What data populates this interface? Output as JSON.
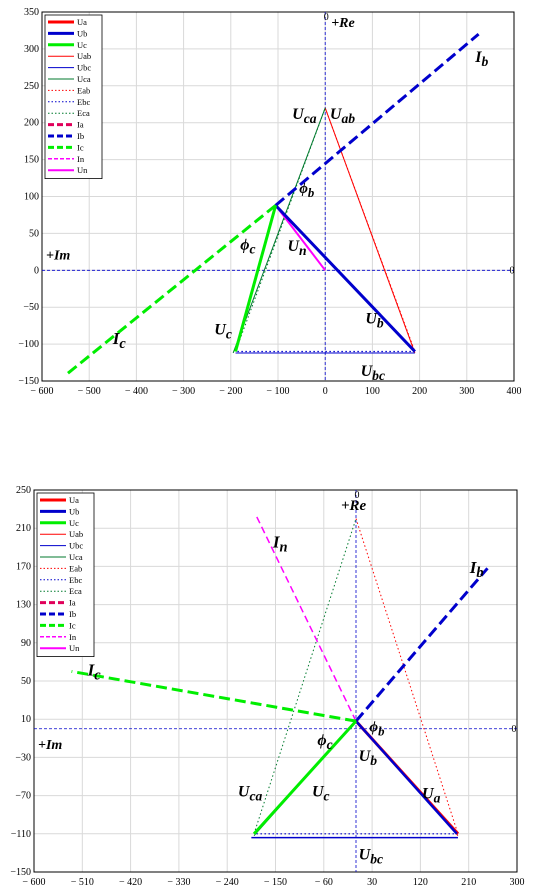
{
  "colors": {
    "red": "#ff0000",
    "blue": "#0000cc",
    "green": "#00ee00",
    "darkgreen": "#007a2e",
    "magenta": "#ff00ff",
    "crimson": "#e0005a",
    "grid": "#d9d9d9",
    "axis": "#0000cc"
  },
  "chart_data": [
    {
      "type": "line",
      "title": "",
      "xlim": [
        -600,
        400
      ],
      "ylim": [
        -150,
        350
      ],
      "xticks": [
        -600,
        -500,
        -400,
        -300,
        -200,
        -100,
        0,
        100,
        200,
        300,
        400
      ],
      "yticks": [
        350,
        300,
        250,
        200,
        150,
        100,
        50,
        0,
        -50,
        -100,
        -150
      ],
      "xtick_labels": [
        "− 600",
        "− 500",
        "− 400",
        "− 300",
        "− 200",
        "− 100",
        "0",
        "100",
        "200",
        "300",
        "400"
      ],
      "ytick_labels": [
        "350",
        "300",
        "250",
        "200",
        "150",
        "100",
        "50",
        "0",
        "−50",
        "−100",
        "−150"
      ],
      "axis_zero_label": "0",
      "axis_labels": {
        "real": "+Re",
        "imag": "+Im"
      },
      "legend": [
        {
          "label": "Ua",
          "color": "#ff0000",
          "width": 3,
          "dash": "solid"
        },
        {
          "label": "Ub",
          "color": "#0000cc",
          "width": 3,
          "dash": "solid"
        },
        {
          "label": "Uc",
          "color": "#00ee00",
          "width": 3,
          "dash": "solid"
        },
        {
          "label": "Uab",
          "color": "#ff0000",
          "width": 1,
          "dash": "solid"
        },
        {
          "label": "Ubc",
          "color": "#0000cc",
          "width": 1,
          "dash": "solid"
        },
        {
          "label": "Uca",
          "color": "#007a2e",
          "width": 1,
          "dash": "solid"
        },
        {
          "label": "Eab",
          "color": "#ff0000",
          "width": 1,
          "dash": "dot"
        },
        {
          "label": "Ebc",
          "color": "#0000cc",
          "width": 1,
          "dash": "dot"
        },
        {
          "label": "Eca",
          "color": "#007a2e",
          "width": 1,
          "dash": "dot"
        },
        {
          "label": "Ia",
          "color": "#e0005a",
          "width": 3,
          "dash": "dash"
        },
        {
          "label": "Ib",
          "color": "#0000cc",
          "width": 3,
          "dash": "dash"
        },
        {
          "label": "Ic",
          "color": "#00ee00",
          "width": 3,
          "dash": "dash"
        },
        {
          "label": "In",
          "color": "#ff00ff",
          "width": 1.5,
          "dash": "dash"
        },
        {
          "label": "Un",
          "color": "#ff00ff",
          "width": 2,
          "dash": "solid"
        }
      ],
      "series": [
        {
          "name": "Eab",
          "color": "#ff0000",
          "width": 1,
          "dash": "dot",
          "points": [
            [
              0,
              220
            ],
            [
              190,
              -110
            ]
          ]
        },
        {
          "name": "Ebc",
          "color": "#0000cc",
          "width": 1.2,
          "dash": "dot",
          "points": [
            [
              190,
              -110
            ],
            [
              -190,
              -110
            ]
          ]
        },
        {
          "name": "Eca",
          "color": "#007a2e",
          "width": 1,
          "dash": "dot",
          "points": [
            [
              -190,
              -110
            ],
            [
              0,
              220
            ]
          ]
        },
        {
          "name": "Uab",
          "color": "#ff0000",
          "width": 1,
          "dash": "solid",
          "points": [
            [
              0,
              220
            ],
            [
              190,
              -112
            ]
          ]
        },
        {
          "name": "Ubc",
          "color": "#0000cc",
          "width": 1,
          "dash": "solid",
          "points": [
            [
              190,
              -112
            ],
            [
              -190,
              -112
            ]
          ]
        },
        {
          "name": "Uca",
          "color": "#007a2e",
          "width": 1,
          "dash": "solid",
          "points": [
            [
              -195,
              -112
            ],
            [
              0,
              220
            ]
          ]
        },
        {
          "name": "Ib",
          "color": "#0000cc",
          "width": 3,
          "dash": "dash",
          "points": [
            [
              -105,
              88
            ],
            [
              325,
              320
            ]
          ]
        },
        {
          "name": "Ic",
          "color": "#00ee00",
          "width": 3,
          "dash": "dash",
          "points": [
            [
              -105,
              88
            ],
            [
              -550,
              -142
            ]
          ]
        },
        {
          "name": "Un",
          "color": "#ff00ff",
          "width": 2,
          "dash": "solid",
          "points": [
            [
              -105,
              88
            ],
            [
              0,
              0
            ]
          ]
        },
        {
          "name": "Ub",
          "color": "#0000cc",
          "width": 3,
          "dash": "solid",
          "points": [
            [
              -105,
              88
            ],
            [
              190,
              -110
            ]
          ]
        },
        {
          "name": "Ua",
          "color": "#ff0000",
          "width": 3,
          "dash": "solid",
          "points": [
            [
              -105,
              88
            ],
            [
              -105,
              88
            ]
          ]
        },
        {
          "name": "Uc",
          "color": "#00ee00",
          "width": 3,
          "dash": "solid",
          "points": [
            [
              -105,
              88
            ],
            [
              -190,
              -110
            ]
          ]
        }
      ],
      "annotations": [
        {
          "text": "Ib",
          "x": 318,
          "y": 282,
          "size": 16
        },
        {
          "text": "Uca",
          "x": -70,
          "y": 205,
          "size": 16
        },
        {
          "text": "Uab",
          "x": 10,
          "y": 205,
          "size": 16
        },
        {
          "text": "ϕb",
          "x": -55,
          "y": 105,
          "size": 15
        },
        {
          "text": "ϕc",
          "x": -180,
          "y": 28,
          "size": 16
        },
        {
          "text": "Un",
          "x": -80,
          "y": 26,
          "size": 16
        },
        {
          "text": "Ub",
          "x": 85,
          "y": -72,
          "size": 16
        },
        {
          "text": "Ic",
          "x": -450,
          "y": -100,
          "size": 17
        },
        {
          "text": "Uc",
          "x": -235,
          "y": -87,
          "size": 16
        },
        {
          "text": "Ubc",
          "x": 75,
          "y": -143,
          "size": 16
        }
      ]
    },
    {
      "type": "line",
      "title": "",
      "xlim": [
        -600,
        300
      ],
      "ylim": [
        -150,
        250
      ],
      "xticks": [
        -600,
        -510,
        -420,
        -330,
        -240,
        -150,
        -60,
        30,
        120,
        210,
        300
      ],
      "yticks": [
        250,
        210,
        170,
        130,
        90,
        50,
        10,
        -30,
        -70,
        -110,
        -150
      ],
      "xtick_labels": [
        "− 600",
        "− 510",
        "− 420",
        "− 330",
        "− 240",
        "− 150",
        "− 60",
        "30",
        "120",
        "210",
        "300"
      ],
      "ytick_labels": [
        "250",
        "210",
        "170",
        "130",
        "90",
        "50",
        "10",
        "−30",
        "−70",
        "−110",
        "−150"
      ],
      "axis_zero_label": "0",
      "axis_labels": {
        "real": "+Re",
        "imag": "+Im"
      },
      "legend": [
        {
          "label": "Ua",
          "color": "#ff0000",
          "width": 3,
          "dash": "solid"
        },
        {
          "label": "Ub",
          "color": "#0000cc",
          "width": 3,
          "dash": "solid"
        },
        {
          "label": "Uc",
          "color": "#00ee00",
          "width": 3,
          "dash": "solid"
        },
        {
          "label": "Uab",
          "color": "#ff0000",
          "width": 1,
          "dash": "solid"
        },
        {
          "label": "Ubc",
          "color": "#0000cc",
          "width": 1,
          "dash": "solid"
        },
        {
          "label": "Uca",
          "color": "#007a2e",
          "width": 1,
          "dash": "solid"
        },
        {
          "label": "Eab",
          "color": "#ff0000",
          "width": 1,
          "dash": "dot"
        },
        {
          "label": "Ebc",
          "color": "#0000cc",
          "width": 1,
          "dash": "dot"
        },
        {
          "label": "Eca",
          "color": "#007a2e",
          "width": 1,
          "dash": "dot"
        },
        {
          "label": "Ia",
          "color": "#e0005a",
          "width": 3,
          "dash": "dash"
        },
        {
          "label": "Ib",
          "color": "#0000cc",
          "width": 3,
          "dash": "dash"
        },
        {
          "label": "Ic",
          "color": "#00ee00",
          "width": 3,
          "dash": "dash"
        },
        {
          "label": "In",
          "color": "#ff00ff",
          "width": 1.5,
          "dash": "dash"
        },
        {
          "label": "Un",
          "color": "#ff00ff",
          "width": 2,
          "dash": "solid"
        }
      ],
      "series": [
        {
          "name": "Eab",
          "color": "#ff0000",
          "width": 1,
          "dash": "dot",
          "points": [
            [
              0,
              220
            ],
            [
              190,
              -110
            ]
          ]
        },
        {
          "name": "Ebc",
          "color": "#0000cc",
          "width": 1.2,
          "dash": "dot",
          "points": [
            [
              190,
              -110
            ],
            [
              -190,
              -110
            ]
          ]
        },
        {
          "name": "Eca",
          "color": "#007a2e",
          "width": 1,
          "dash": "dot",
          "points": [
            [
              -190,
              -110
            ],
            [
              0,
              220
            ]
          ]
        },
        {
          "name": "Ubc",
          "color": "#0000cc",
          "width": 1.5,
          "dash": "solid",
          "points": [
            [
              190,
              -114
            ],
            [
              -195,
              -114
            ]
          ]
        },
        {
          "name": "In",
          "color": "#ff00ff",
          "width": 1.5,
          "dash": "dash",
          "points": [
            [
              0,
              8
            ],
            [
              -185,
              222
            ]
          ]
        },
        {
          "name": "Ib",
          "color": "#0000cc",
          "width": 3,
          "dash": "dash",
          "points": [
            [
              0,
              8
            ],
            [
              245,
              168
            ]
          ]
        },
        {
          "name": "Ic",
          "color": "#00ee00",
          "width": 3,
          "dash": "dash",
          "points": [
            [
              0,
              8
            ],
            [
              -530,
              60
            ]
          ]
        },
        {
          "name": "Uab",
          "color": "#ff0000",
          "width": 1,
          "dash": "solid",
          "points": [
            [
              0,
              8
            ],
            [
              190,
              -112
            ]
          ]
        },
        {
          "name": "Ua",
          "color": "#ff0000",
          "width": 3,
          "dash": "solid",
          "points": [
            [
              0,
              8
            ],
            [
              190,
              -110
            ]
          ]
        },
        {
          "name": "Ub",
          "color": "#0000cc",
          "width": 2.5,
          "dash": "solid",
          "points": [
            [
              0,
              8
            ],
            [
              188,
              -110
            ]
          ]
        },
        {
          "name": "Uca",
          "color": "#007a2e",
          "width": 1,
          "dash": "solid",
          "points": [
            [
              -190,
              -112
            ],
            [
              0,
              8
            ]
          ]
        },
        {
          "name": "Uc",
          "color": "#00ee00",
          "width": 3,
          "dash": "solid",
          "points": [
            [
              -190,
              -110
            ],
            [
              0,
              8
            ]
          ]
        }
      ],
      "annotations": [
        {
          "text": "+Re",
          "x": -28,
          "y": 229,
          "size": 15
        },
        {
          "text": "In",
          "x": -155,
          "y": 190,
          "size": 17
        },
        {
          "text": "Ib",
          "x": 212,
          "y": 163,
          "size": 17
        },
        {
          "text": "Ic",
          "x": -500,
          "y": 56,
          "size": 17
        },
        {
          "text": "ϕb",
          "x": 25,
          "y": -3,
          "size": 15
        },
        {
          "text": "ϕc",
          "x": -72,
          "y": -17,
          "size": 16
        },
        {
          "text": "Ub",
          "x": 5,
          "y": -34,
          "size": 16
        },
        {
          "text": "Uca",
          "x": -220,
          "y": -71,
          "size": 16
        },
        {
          "text": "Uc",
          "x": -82,
          "y": -71,
          "size": 16
        },
        {
          "text": "Ua",
          "x": 123,
          "y": -73,
          "size": 16
        },
        {
          "text": "Ubc",
          "x": 5,
          "y": -137,
          "size": 16
        }
      ]
    }
  ]
}
